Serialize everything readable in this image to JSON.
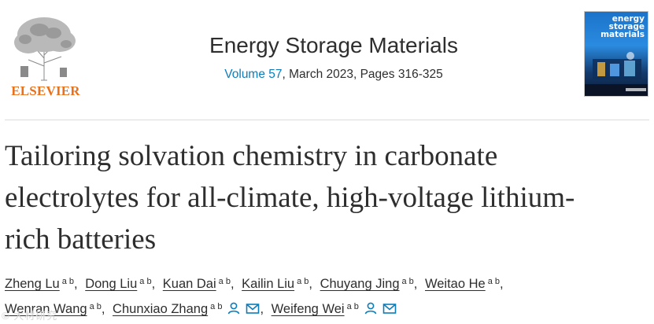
{
  "publisher": {
    "name": "ELSEVIER"
  },
  "journal": {
    "title": "Energy Storage Materials",
    "volume_link": "Volume 57",
    "details": ", March 2023, Pages 316-325"
  },
  "cover": {
    "title": "energy\nstorage\nmaterials",
    "colors": {
      "top": "#1b73c9",
      "bottom": "#0b1a33"
    }
  },
  "article": {
    "title": "Tailoring solvation chemistry in carbonate electrolytes for all-climate, high-voltage lithium-rich batteries"
  },
  "authors": [
    {
      "name": "Zheng Lu",
      "aff": "a b"
    },
    {
      "name": "Dong Liu",
      "aff": "a b"
    },
    {
      "name": "Kuan Dai",
      "aff": "a b"
    },
    {
      "name": "Kailin Liu",
      "aff": "a b"
    },
    {
      "name": "Chuyang Jing",
      "aff": "a b"
    },
    {
      "name": "Weitao He",
      "aff": "a b"
    },
    {
      "name": "Wenran Wang",
      "aff": "a b"
    },
    {
      "name": "Chunxiao Zhang",
      "aff": "a b"
    },
    {
      "name": "Weifeng Wei",
      "aff": "a b"
    }
  ],
  "separators": {
    "comma": ","
  },
  "icons": {
    "person": "person-icon",
    "mail": "envelope-icon"
  },
  "colors": {
    "accent": "#0c7dbb",
    "brand": "#e9711c",
    "text": "#2e2e2e"
  },
  "watermark": "© 大材研究"
}
